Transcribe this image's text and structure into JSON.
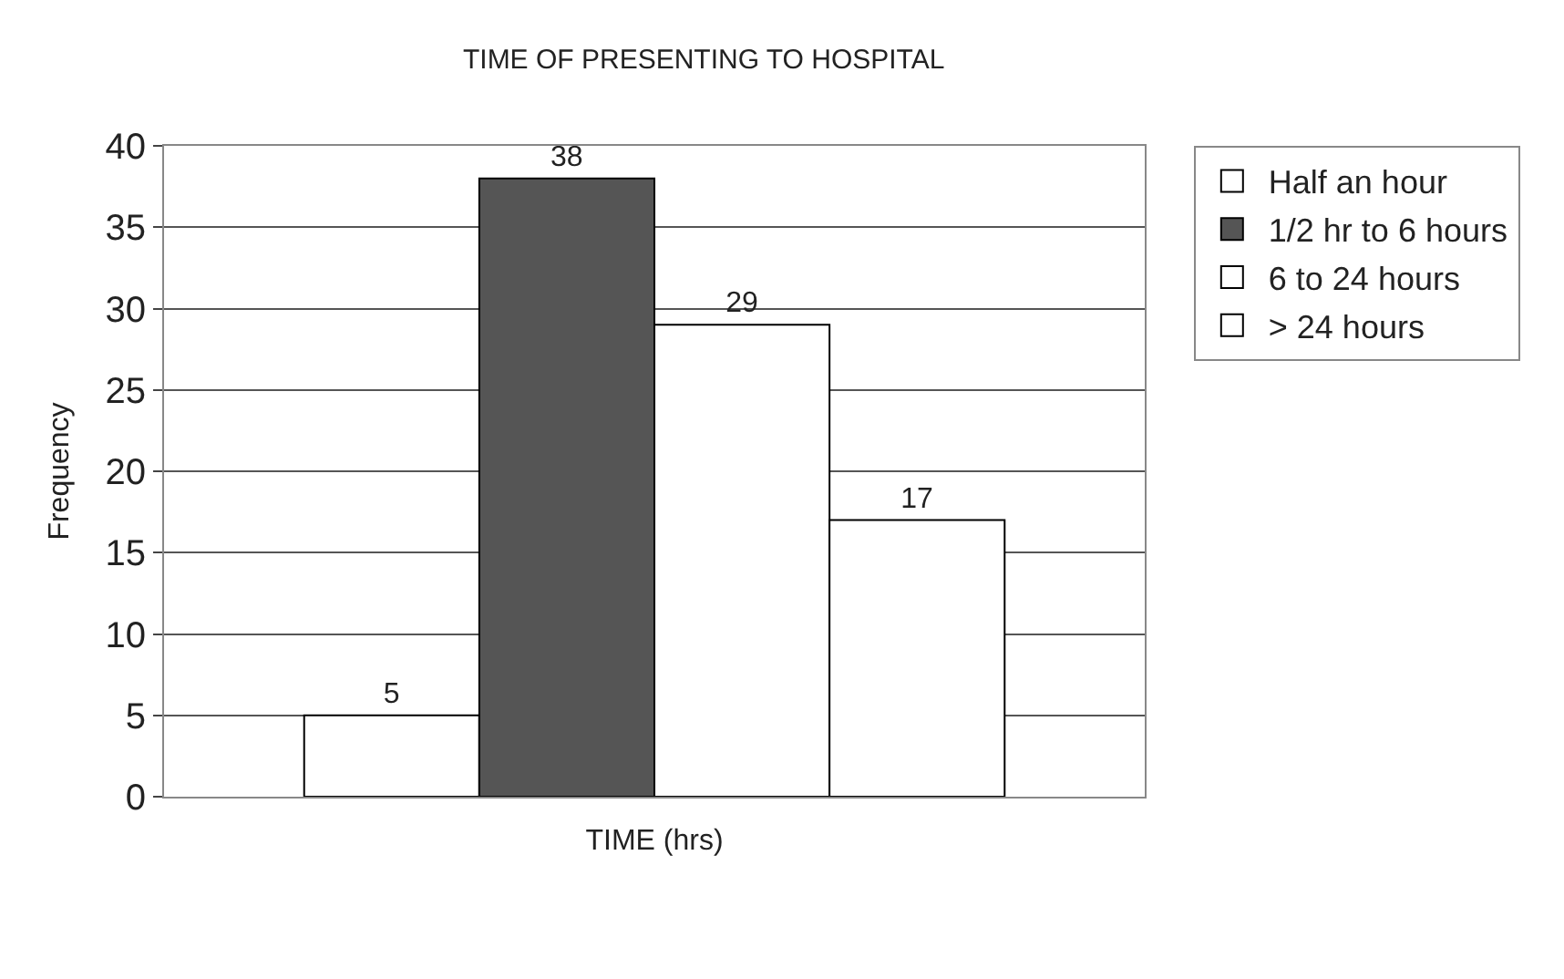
{
  "chart_data": {
    "type": "bar",
    "title": "TIME OF PRESENTING TO HOSPITAL",
    "xlabel": "TIME (hrs)",
    "ylabel": "Frequency",
    "categories": [
      null,
      null,
      null,
      null
    ],
    "series": [
      {
        "name": "Half an hour",
        "color": "#ffffff",
        "values": [
          5,
          null,
          null,
          null
        ]
      },
      {
        "name": "1/2 hr to 6 hours",
        "color": "#555555",
        "values": [
          null,
          38,
          null,
          null
        ]
      },
      {
        "name": "6 to 24 hours",
        "color": "#ffffff",
        "values": [
          null,
          null,
          29,
          null
        ]
      },
      {
        "name": "> 24 hours",
        "color": "#ffffff",
        "values": [
          null,
          null,
          null,
          17
        ]
      }
    ],
    "ylim": [
      0,
      40
    ],
    "yticks": [
      0,
      5,
      10,
      15,
      20,
      25,
      30,
      35,
      40
    ],
    "grid": "y",
    "legend": "right",
    "data_labels": true
  }
}
